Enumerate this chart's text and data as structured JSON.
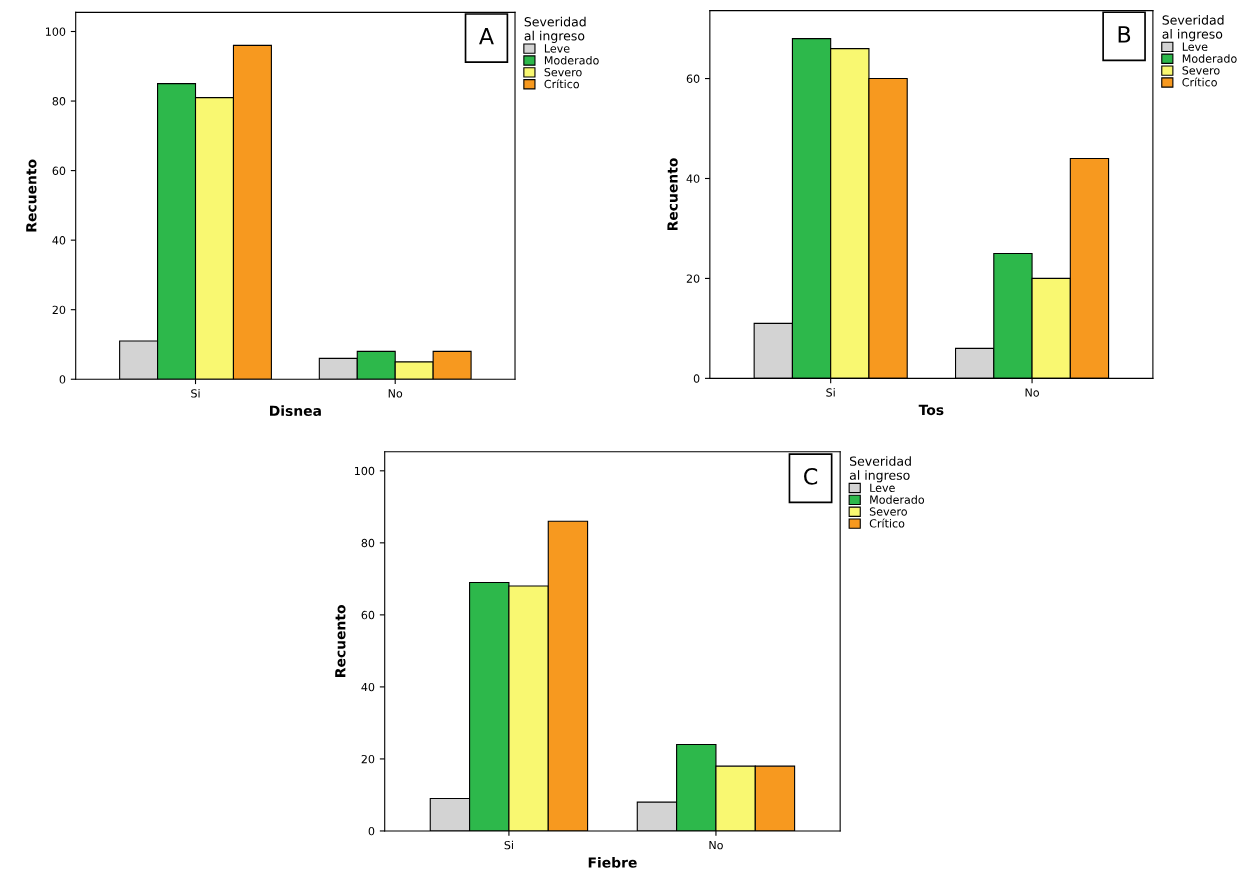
{
  "chart_data": [
    {
      "type": "bar",
      "xlabel": "Disnea",
      "ylabel": "Recuento",
      "categories": [
        "Si",
        "No"
      ],
      "legend_title": "Severidad\nal ingreso",
      "legend": "right",
      "ylim": [
        0,
        105.5
      ],
      "yticks": [
        0,
        20,
        40,
        60,
        80,
        100
      ],
      "annotations": [
        "A"
      ],
      "series": [
        {
          "name": "Leve",
          "color": "#d3d3d3",
          "values": [
            11,
            6
          ]
        },
        {
          "name": "Moderado",
          "color": "#2db84b",
          "values": [
            85,
            8
          ]
        },
        {
          "name": "Severo",
          "color": "#f9f871",
          "values": [
            81,
            5
          ]
        },
        {
          "name": "Crítico",
          "color": "#f7991f",
          "values": [
            96,
            8
          ]
        }
      ]
    },
    {
      "type": "bar",
      "xlabel": "Tos",
      "ylabel": "Recuento",
      "categories": [
        "Si",
        "No"
      ],
      "legend_title": "Severidad\nal ingreso",
      "legend": "right",
      "ylim": [
        0,
        73.6
      ],
      "yticks": [
        0,
        20,
        40,
        60
      ],
      "annotations": [
        "B"
      ],
      "series": [
        {
          "name": "Leve",
          "color": "#d3d3d3",
          "values": [
            11,
            6
          ]
        },
        {
          "name": "Moderado",
          "color": "#2db84b",
          "values": [
            68,
            25
          ]
        },
        {
          "name": "Severo",
          "color": "#f9f871",
          "values": [
            66,
            20
          ]
        },
        {
          "name": "Crítico",
          "color": "#f7991f",
          "values": [
            60,
            44
          ]
        }
      ]
    },
    {
      "type": "bar",
      "xlabel": "Fiebre",
      "ylabel": "Recuento",
      "categories": [
        "Si",
        "No"
      ],
      "legend_title": "Severidad\nal ingreso",
      "legend": "right",
      "ylim": [
        0,
        105.3
      ],
      "yticks": [
        0,
        20,
        40,
        60,
        80,
        100
      ],
      "annotations": [
        "C"
      ],
      "series": [
        {
          "name": "Leve",
          "color": "#d3d3d3",
          "values": [
            9,
            8
          ]
        },
        {
          "name": "Moderado",
          "color": "#2db84b",
          "values": [
            69,
            24
          ]
        },
        {
          "name": "Severo",
          "color": "#f9f871",
          "values": [
            68,
            18
          ]
        },
        {
          "name": "Crítico",
          "color": "#f7991f",
          "values": [
            86,
            18
          ]
        }
      ]
    }
  ]
}
